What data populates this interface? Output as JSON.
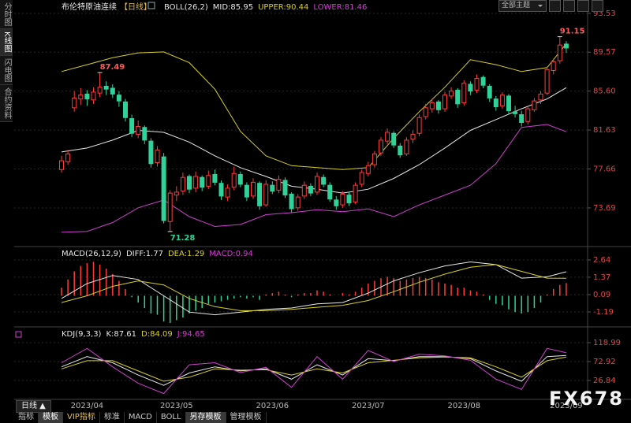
{
  "toolbar": {
    "theme_select": "全部主题"
  },
  "sidebar": {
    "tabs": [
      "分时图",
      "K线图",
      "闪电图",
      "合约资料"
    ]
  },
  "bottom_bar": {
    "period": "日线 ▲",
    "tabs": [
      "指标",
      "模板",
      "VIP指标",
      "标准",
      "MACD",
      "BOLL",
      "另存模板",
      "管理模板"
    ]
  },
  "watermark": "FX678",
  "chart_data": [
    {
      "type": "candlestick",
      "title": "布伦特原油连续",
      "period_label": "【日线】",
      "indicator": "BOLL(26,2)",
      "legend": [
        {
          "text": "MID:85.95",
          "color": "#e8e8e8"
        },
        {
          "text": "UPPER:90.44",
          "color": "#d8d020"
        },
        {
          "text": "LOWER:81.46",
          "color": "#d040d0"
        }
      ],
      "up_color": "#ff3b3b",
      "down_color": "#2fd39a",
      "tick_color": "#e04848",
      "grid": true,
      "ylim": [
        69.99,
        94.49
      ],
      "yticks": [
        93.53,
        89.57,
        {
          "value": 85.6,
          "label": "85.60"
        },
        81.63,
        77.66,
        73.69
      ],
      "categories": [
        null,
        null,
        null,
        null,
        "2023/04",
        null,
        null,
        null,
        null,
        null,
        null,
        null,
        null,
        null,
        null,
        null,
        null,
        null,
        "2023/05",
        null,
        null,
        null,
        null,
        null,
        null,
        null,
        null,
        null,
        null,
        null,
        null,
        null,
        null,
        "2023/06",
        null,
        null,
        null,
        null,
        null,
        null,
        null,
        null,
        null,
        null,
        null,
        null,
        null,
        null,
        "2023/07",
        null,
        null,
        null,
        null,
        null,
        null,
        null,
        null,
        null,
        null,
        null,
        null,
        null,
        null,
        "2023/08",
        null,
        null,
        null,
        null,
        null,
        null,
        null,
        null,
        null,
        null,
        null,
        null,
        null,
        null,
        null,
        "2023/09"
      ],
      "candles": [
        [
          77.6,
          79.0,
          77.3,
          78.5
        ],
        [
          78.4,
          79.6,
          78.1,
          79.2
        ],
        [
          83.9,
          85.6,
          83.5,
          84.9
        ],
        [
          84.8,
          85.9,
          84.2,
          85.2
        ],
        [
          85.3,
          85.7,
          84.1,
          84.8
        ],
        [
          84.7,
          86.0,
          84.3,
          85.5
        ],
        [
          85.4,
          87.49,
          85.0,
          86.0
        ],
        [
          86.1,
          86.6,
          85.2,
          85.8
        ],
        [
          85.9,
          86.3,
          84.9,
          85.3
        ],
        [
          85.2,
          85.6,
          84.0,
          84.6
        ],
        [
          84.5,
          84.8,
          82.5,
          82.9
        ],
        [
          82.8,
          83.2,
          80.9,
          81.3
        ],
        [
          81.2,
          82.6,
          80.8,
          82.0
        ],
        [
          81.9,
          82.1,
          80.2,
          80.6
        ],
        [
          80.5,
          80.8,
          77.8,
          78.2
        ],
        [
          78.3,
          80.0,
          77.9,
          79.6
        ],
        [
          78.9,
          79.3,
          72.1,
          72.4
        ],
        [
          72.3,
          75.5,
          71.28,
          75.2
        ],
        [
          75.0,
          75.9,
          74.4,
          75.3
        ],
        [
          75.4,
          77.3,
          75.0,
          76.8
        ],
        [
          76.9,
          77.1,
          75.2,
          75.6
        ],
        [
          75.7,
          77.4,
          75.3,
          76.9
        ],
        [
          76.8,
          77.0,
          75.4,
          75.8
        ],
        [
          75.9,
          77.5,
          75.6,
          77.0
        ],
        [
          77.1,
          77.6,
          76.0,
          76.3
        ],
        [
          76.2,
          76.5,
          74.5,
          74.9
        ],
        [
          74.8,
          76.1,
          74.4,
          75.7
        ],
        [
          75.8,
          77.9,
          75.5,
          77.2
        ],
        [
          77.1,
          77.4,
          75.8,
          76.1
        ],
        [
          76.0,
          76.3,
          74.4,
          74.8
        ],
        [
          74.9,
          76.7,
          74.6,
          76.3
        ],
        [
          76.2,
          76.4,
          73.5,
          73.9
        ],
        [
          74.0,
          76.5,
          73.8,
          76.1
        ],
        [
          76.0,
          76.4,
          75.1,
          75.4
        ],
        [
          75.5,
          77.0,
          75.2,
          76.6
        ],
        [
          76.5,
          76.8,
          74.7,
          75.0
        ],
        [
          75.1,
          75.3,
          73.2,
          73.6
        ],
        [
          73.7,
          75.1,
          73.4,
          74.8
        ],
        [
          74.9,
          76.4,
          74.6,
          76.0
        ],
        [
          75.9,
          76.2,
          74.9,
          75.2
        ],
        [
          75.3,
          77.3,
          75.0,
          76.9
        ],
        [
          76.8,
          77.1,
          75.8,
          76.1
        ],
        [
          76.0,
          76.3,
          74.3,
          74.6
        ],
        [
          74.5,
          74.9,
          73.5,
          73.9
        ],
        [
          74.0,
          75.4,
          73.7,
          75.1
        ],
        [
          75.0,
          75.3,
          73.9,
          74.2
        ],
        [
          74.3,
          76.3,
          74.1,
          76.0
        ],
        [
          76.1,
          77.6,
          75.8,
          77.3
        ],
        [
          77.2,
          78.4,
          76.9,
          78.0
        ],
        [
          78.1,
          79.5,
          77.8,
          79.2
        ],
        [
          79.3,
          80.9,
          79.0,
          80.6
        ],
        [
          80.5,
          81.8,
          80.2,
          81.4
        ],
        [
          81.3,
          81.5,
          79.8,
          80.1
        ],
        [
          80.0,
          80.3,
          78.8,
          79.1
        ],
        [
          79.2,
          80.9,
          79.0,
          80.6
        ],
        [
          80.7,
          81.6,
          80.3,
          81.2
        ],
        [
          81.3,
          83.2,
          81.0,
          82.9
        ],
        [
          83.0,
          84.3,
          82.7,
          83.9
        ],
        [
          83.8,
          84.8,
          83.4,
          84.4
        ],
        [
          84.5,
          84.7,
          83.3,
          83.7
        ],
        [
          83.8,
          85.5,
          83.5,
          85.2
        ],
        [
          85.1,
          86.0,
          84.8,
          85.6
        ],
        [
          85.7,
          85.9,
          83.9,
          84.3
        ],
        [
          84.4,
          86.7,
          84.1,
          86.4
        ],
        [
          86.3,
          86.6,
          85.2,
          85.6
        ],
        [
          85.7,
          87.3,
          85.4,
          86.9
        ],
        [
          87.0,
          87.2,
          85.9,
          86.2
        ],
        [
          86.1,
          86.3,
          84.5,
          84.9
        ],
        [
          84.8,
          85.1,
          83.6,
          84.0
        ],
        [
          84.1,
          85.5,
          83.8,
          85.2
        ],
        [
          85.1,
          85.3,
          83.2,
          83.6
        ],
        [
          83.5,
          84.1,
          82.9,
          83.3
        ],
        [
          83.2,
          83.6,
          82.0,
          82.4
        ],
        [
          82.5,
          84.1,
          82.2,
          83.8
        ],
        [
          83.7,
          84.9,
          83.5,
          84.6
        ],
        [
          84.7,
          85.6,
          84.3,
          85.3
        ],
        [
          85.4,
          88.1,
          85.2,
          87.8
        ],
        [
          87.7,
          88.9,
          87.3,
          88.6
        ],
        [
          88.7,
          91.15,
          88.4,
          90.3
        ],
        [
          90.4,
          90.7,
          89.5,
          90.0
        ]
      ],
      "series": [
        {
          "name": "MID",
          "color": "#e8e8e8",
          "x": [
            0,
            4,
            8,
            12,
            16,
            20,
            24,
            28,
            32,
            36,
            40,
            44,
            48,
            52,
            56,
            60,
            64,
            68,
            72,
            76,
            79
          ],
          "values": [
            79.4,
            79.8,
            80.6,
            81.6,
            81.4,
            80.4,
            79.0,
            77.8,
            76.9,
            75.9,
            75.6,
            75.2,
            75.6,
            76.7,
            78.1,
            79.8,
            81.6,
            82.7,
            83.8,
            84.8,
            85.95
          ]
        },
        {
          "name": "UPPER",
          "color": "#d8d020",
          "x": [
            0,
            4,
            8,
            12,
            16,
            20,
            24,
            28,
            32,
            36,
            40,
            44,
            48,
            52,
            56,
            60,
            64,
            68,
            72,
            76,
            79
          ],
          "values": [
            87.6,
            88.3,
            89.0,
            89.5,
            89.6,
            88.5,
            85.8,
            81.5,
            79.0,
            78.0,
            77.8,
            77.6,
            77.8,
            80.8,
            83.5,
            86.0,
            88.8,
            88.3,
            87.6,
            88.0,
            90.44
          ]
        },
        {
          "name": "LOWER",
          "color": "#d040d0",
          "x": [
            0,
            4,
            8,
            12,
            16,
            20,
            24,
            28,
            32,
            36,
            40,
            44,
            48,
            52,
            56,
            60,
            64,
            68,
            72,
            76,
            79
          ],
          "values": [
            71.2,
            71.3,
            72.2,
            73.7,
            74.5,
            72.8,
            71.8,
            72.0,
            73.0,
            73.2,
            73.5,
            73.3,
            73.6,
            72.8,
            74.0,
            75.0,
            76.0,
            78.2,
            81.9,
            82.2,
            81.46
          ]
        }
      ],
      "annotations": [
        {
          "index": 6,
          "side": "high",
          "text": "87.49",
          "color": "#ff5a5a"
        },
        {
          "index": 17,
          "side": "low",
          "text": "71.28",
          "color": "#2fd39a"
        },
        {
          "index": 78,
          "side": "high",
          "text": "91.15",
          "color": "#ff5a5a"
        }
      ]
    },
    {
      "type": "macd",
      "title": "MACD(26,12,9)",
      "legend": [
        {
          "text": "DIFF:1.77",
          "color": "#e8e8e8"
        },
        {
          "text": "DEA:1.29",
          "color": "#d8d020"
        },
        {
          "text": "MACD:0.94",
          "color": "#d040d0"
        }
      ],
      "tick_color": "#e04848",
      "grid": true,
      "ylim": [
        -2.12,
        3.34
      ],
      "yticks": [
        2.64,
        1.37,
        0.09,
        -1.19
      ],
      "histogram": {
        "up_color": "#ff3b3b",
        "down_color": "#2fd39a",
        "values": [
          0.6,
          1.2,
          1.8,
          2.2,
          2.4,
          2.5,
          2.3,
          2.0,
          1.6,
          1.1,
          0.5,
          -0.1,
          -0.5,
          -0.9,
          -1.3,
          -1.4,
          -1.9,
          -2.0,
          -1.8,
          -1.6,
          -1.3,
          -1.1,
          -0.9,
          -0.6,
          -0.5,
          -0.4,
          -0.3,
          -0.2,
          -0.1,
          -0.2,
          -0.1,
          -0.3,
          0.1,
          0.2,
          0.3,
          0.1,
          -0.1,
          0.1,
          0.2,
          0.2,
          0.4,
          0.3,
          0.1,
          0.0,
          0.2,
          0.1,
          0.3,
          0.6,
          0.9,
          1.1,
          1.3,
          1.4,
          1.3,
          1.1,
          1.2,
          1.3,
          1.4,
          1.3,
          1.2,
          1.0,
          0.9,
          0.8,
          0.6,
          0.6,
          0.4,
          0.3,
          0.1,
          -0.3,
          -0.6,
          -0.7,
          -1.0,
          -1.2,
          -1.3,
          -1.2,
          -0.9,
          -0.5,
          0.1,
          0.5,
          0.8,
          0.94
        ]
      },
      "series": [
        {
          "name": "DIFF",
          "color": "#e8e8e8",
          "x": [
            0,
            4,
            8,
            12,
            16,
            20,
            24,
            28,
            32,
            36,
            40,
            44,
            48,
            52,
            56,
            60,
            64,
            68,
            72,
            76,
            79
          ],
          "values": [
            -0.2,
            0.9,
            1.5,
            1.2,
            0.0,
            -1.2,
            -1.4,
            -1.2,
            -1.0,
            -0.9,
            -0.6,
            -0.5,
            0.2,
            1.1,
            1.7,
            2.2,
            2.5,
            2.3,
            1.3,
            1.4,
            1.77
          ]
        },
        {
          "name": "DEA",
          "color": "#d8d020",
          "x": [
            0,
            4,
            8,
            12,
            16,
            20,
            24,
            28,
            32,
            36,
            40,
            44,
            48,
            52,
            56,
            60,
            64,
            68,
            72,
            76,
            79
          ],
          "values": [
            -0.5,
            0.0,
            0.7,
            1.1,
            0.8,
            -0.2,
            -0.8,
            -1.1,
            -1.1,
            -1.0,
            -0.85,
            -0.7,
            -0.35,
            0.3,
            1.0,
            1.6,
            2.1,
            2.3,
            1.8,
            1.3,
            1.29
          ]
        }
      ]
    },
    {
      "type": "line",
      "title": "KDJ(9,3,3)",
      "legend": [
        {
          "text": "K:87.61",
          "color": "#e8e8e8"
        },
        {
          "text": "D:84.09",
          "color": "#d8d020"
        },
        {
          "text": "J:94.65",
          "color": "#d040d0"
        }
      ],
      "tick_color": "#e04848",
      "grid": true,
      "ylim": [
        -15.4,
        147.8
      ],
      "yticks": [
        118.99,
        72.92,
        26.84
      ],
      "series": [
        {
          "name": "K",
          "color": "#e8e8e8",
          "x": [
            0,
            4,
            8,
            12,
            16,
            20,
            24,
            28,
            32,
            36,
            40,
            44,
            48,
            52,
            56,
            60,
            64,
            68,
            72,
            76,
            79
          ],
          "values": [
            60,
            85,
            70,
            40,
            15,
            45,
            60,
            50,
            55,
            30,
            65,
            40,
            80,
            75,
            85,
            85,
            80,
            50,
            25,
            85,
            87.61
          ]
        },
        {
          "name": "D",
          "color": "#d8d020",
          "x": [
            0,
            4,
            8,
            12,
            16,
            20,
            24,
            28,
            32,
            36,
            40,
            44,
            48,
            52,
            56,
            60,
            64,
            68,
            72,
            76,
            79
          ],
          "values": [
            55,
            75,
            75,
            50,
            25,
            35,
            55,
            52,
            53,
            40,
            55,
            45,
            70,
            76,
            82,
            84,
            82,
            60,
            35,
            75,
            84.09
          ]
        },
        {
          "name": "J",
          "color": "#d040d0",
          "x": [
            0,
            4,
            8,
            12,
            16,
            20,
            24,
            28,
            32,
            36,
            40,
            44,
            48,
            52,
            56,
            60,
            64,
            68,
            72,
            76,
            79
          ],
          "values": [
            70,
            105,
            60,
            20,
            -5,
            65,
            70,
            46,
            59,
            10,
            85,
            30,
            100,
            73,
            91,
            87,
            76,
            30,
            5,
            105,
            94.65
          ]
        }
      ]
    }
  ]
}
